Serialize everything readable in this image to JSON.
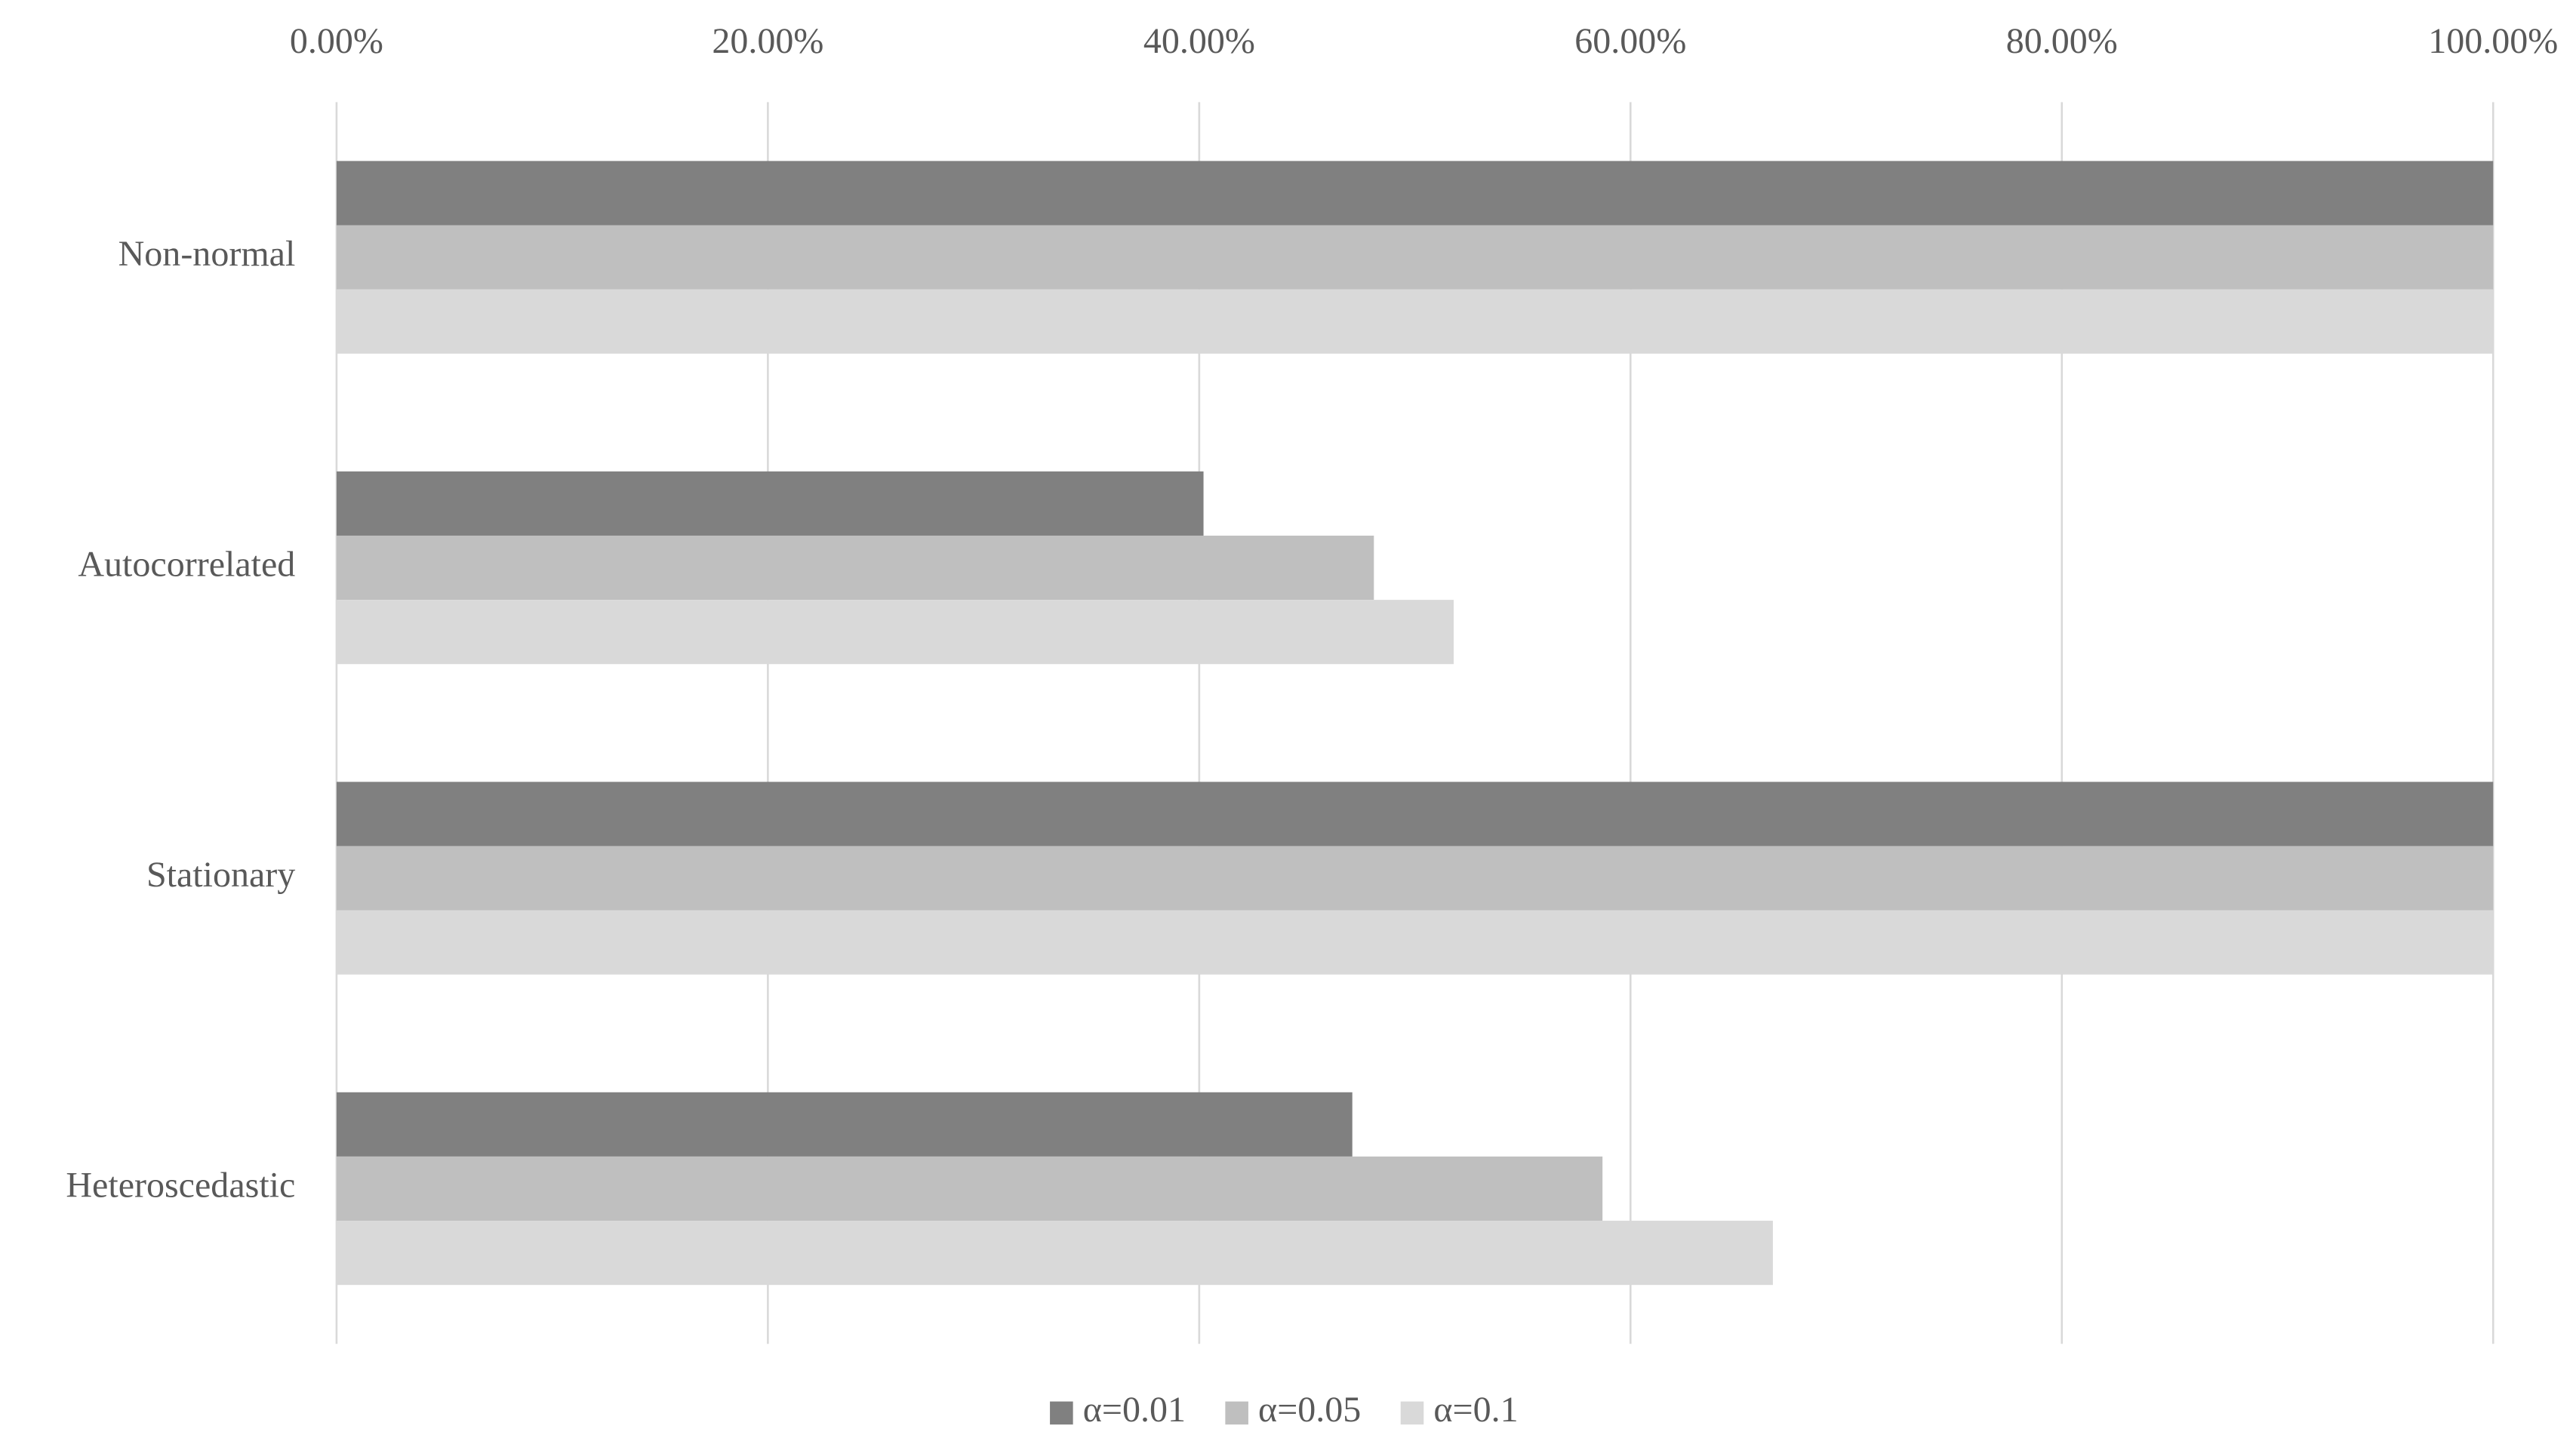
{
  "chart_data": {
    "type": "bar",
    "orientation": "horizontal",
    "categories": [
      "Non-normal",
      "Autocorrelated",
      "Stationary",
      "Heteroscedastic"
    ],
    "series": [
      {
        "name": "α=0.01",
        "color": "#808080",
        "values": [
          100,
          40.2,
          100,
          47.1
        ]
      },
      {
        "name": "α=0.05",
        "color": "#bfbfbf",
        "values": [
          100,
          48.1,
          100,
          58.7
        ]
      },
      {
        "name": "α=0.1",
        "color": "#d9d9d9",
        "values": [
          100,
          51.8,
          100,
          66.6
        ]
      }
    ],
    "xlim": [
      0,
      100
    ],
    "xticks": [
      {
        "value": 0,
        "label": "0.00%"
      },
      {
        "value": 20,
        "label": "20.00%"
      },
      {
        "value": 40,
        "label": "40.00%"
      },
      {
        "value": 60,
        "label": "60.00%"
      },
      {
        "value": 80,
        "label": "80.00%"
      },
      {
        "value": 100,
        "label": "100.00%"
      }
    ],
    "grid": true,
    "legend": "bottom"
  }
}
